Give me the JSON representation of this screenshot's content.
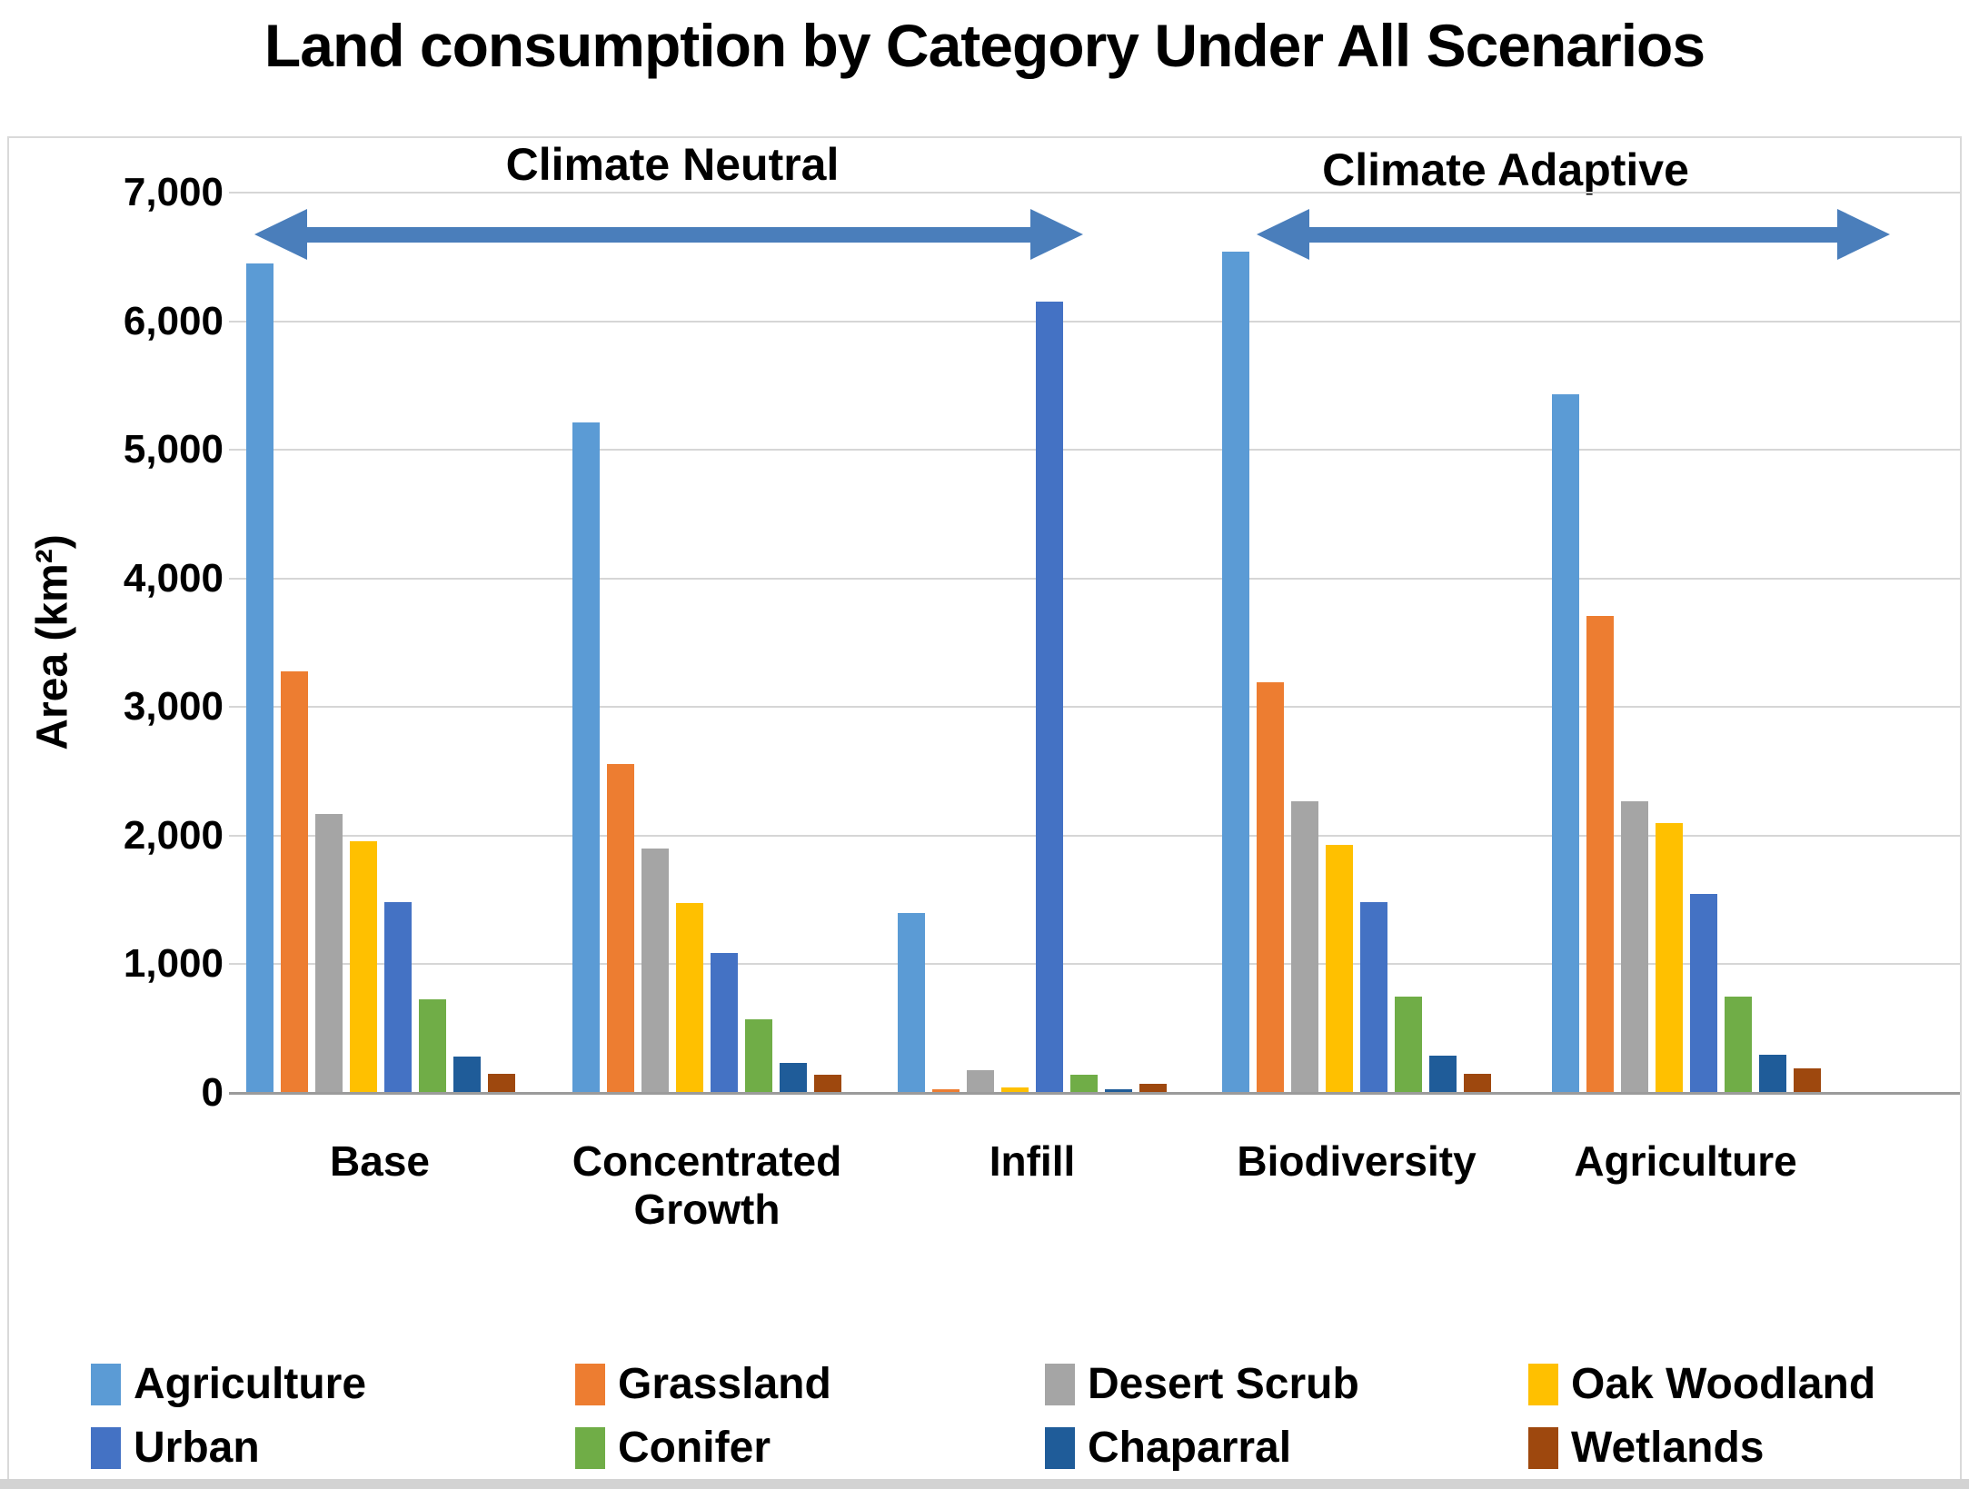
{
  "title": "Land consumption by Category Under All Scenarios",
  "y_axis": {
    "title": "Area (km²)",
    "tick_labels": [
      "0",
      "1,000",
      "2,000",
      "3,000",
      "4,000",
      "5,000",
      "6,000",
      "7,000"
    ]
  },
  "annotations": {
    "left": {
      "label": "Climate Neutral",
      "covers": [
        "Base",
        "Concentrated Growth",
        "Infill"
      ]
    },
    "right": {
      "label": "Climate Adaptive",
      "covers": [
        "Biodiversity",
        "Agriculture"
      ]
    }
  },
  "chart_data": {
    "type": "bar",
    "title": "Land consumption by Category Under All Scenarios",
    "xlabel": "",
    "ylabel": "Area (km²)",
    "ylim": [
      0,
      7000
    ],
    "ytick_step": 1000,
    "grid": true,
    "legend_position": "bottom",
    "categories": [
      "Base",
      "Concentrated Growth",
      "Infill",
      "Biodiversity",
      "Agriculture"
    ],
    "series": [
      {
        "name": "Agriculture",
        "color": "#5B9BD5",
        "values": [
          6450,
          5210,
          1400,
          6540,
          5430
        ]
      },
      {
        "name": "Grassland",
        "color": "#ED7D31",
        "values": [
          3280,
          2560,
          30,
          3190,
          3710
        ]
      },
      {
        "name": "Desert Scrub",
        "color": "#A5A5A5",
        "values": [
          2170,
          1900,
          175,
          2270,
          2270
        ]
      },
      {
        "name": "Oak Woodland",
        "color": "#FFC000",
        "values": [
          1960,
          1475,
          45,
          1930,
          2100
        ]
      },
      {
        "name": "Urban",
        "color": "#4472C4",
        "values": [
          1480,
          1085,
          6150,
          1480,
          1550
        ]
      },
      {
        "name": "Conifer",
        "color": "#70AD47",
        "values": [
          725,
          570,
          140,
          750,
          750
        ]
      },
      {
        "name": "Chaparral",
        "color": "#1F5C99",
        "values": [
          285,
          230,
          30,
          290,
          300
        ]
      },
      {
        "name": "Wetlands",
        "color": "#9E480E",
        "values": [
          150,
          140,
          70,
          150,
          190
        ]
      }
    ]
  },
  "legend": {
    "rows": [
      [
        "Agriculture",
        "Grassland",
        "Desert Scrub",
        "Oak Woodland"
      ],
      [
        "Urban",
        "Conifer",
        "Chaparral",
        "Wetlands"
      ]
    ]
  },
  "colors": {
    "arrow": "#4A7EBB",
    "gridline": "#D6D6D6",
    "axis_line": "#9B9B9B",
    "border": "#D9D9D9",
    "background": "#FFFFFF"
  }
}
